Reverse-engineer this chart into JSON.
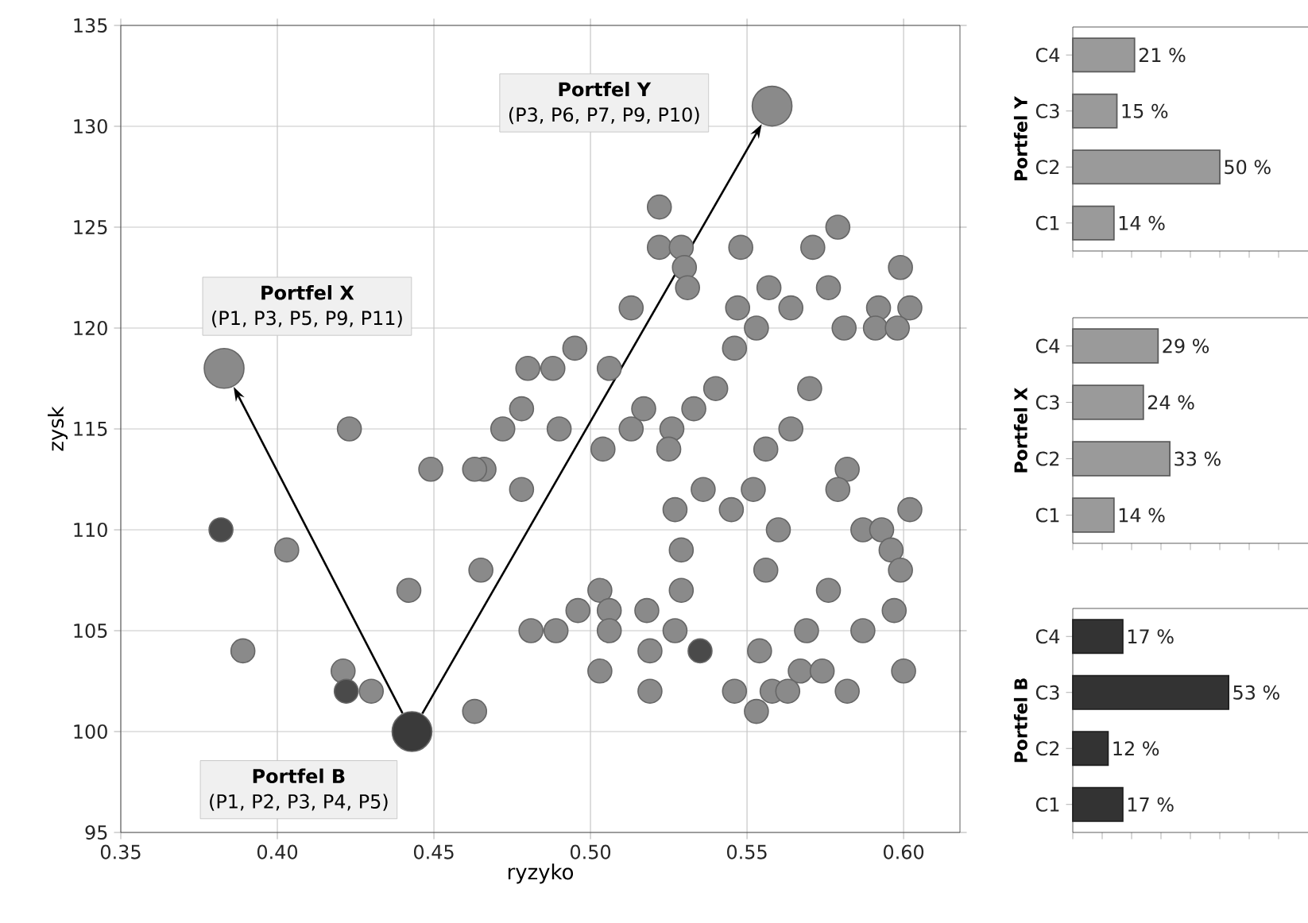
{
  "chart_data": [
    {
      "type": "scatter",
      "xlabel": "ryzyko",
      "ylabel": "zysk",
      "xlim": [
        0.35,
        0.618
      ],
      "ylim": [
        95,
        135
      ],
      "xticks": [
        {
          "value": 0.35,
          "label": "0.35"
        },
        {
          "value": 0.4,
          "label": "0.40"
        },
        {
          "value": 0.45,
          "label": "0.45"
        },
        {
          "value": 0.5,
          "label": "0.50"
        },
        {
          "value": 0.55,
          "label": "0.55"
        },
        {
          "value": 0.6,
          "label": "0.60"
        }
      ],
      "yticks": [
        95,
        100,
        105,
        110,
        115,
        120,
        125,
        130,
        135
      ],
      "grid": true,
      "marker": "circle",
      "series": [
        {
          "color": "#8a8a8a",
          "x": [
            0.522,
            0.522,
            0.529,
            0.53,
            0.531,
            0.513,
            0.548,
            0.557,
            0.564,
            0.547,
            0.553,
            0.546,
            0.571,
            0.579,
            0.576,
            0.581,
            0.592,
            0.602,
            0.599,
            0.591,
            0.598,
            0.495,
            0.488,
            0.48,
            0.506,
            0.478,
            0.472,
            0.466,
            0.423,
            0.49,
            0.504,
            0.513,
            0.517,
            0.526,
            0.525,
            0.533,
            0.54,
            0.57,
            0.564,
            0.556,
            0.582,
            0.579,
            0.536,
            0.552,
            0.527,
            0.545,
            0.56,
            0.602,
            0.587,
            0.593,
            0.596,
            0.599,
            0.529,
            0.556,
            0.529,
            0.576,
            0.597,
            0.503,
            0.496,
            0.506,
            0.518,
            0.481,
            0.489,
            0.506,
            0.527,
            0.569,
            0.587,
            0.519,
            0.554,
            0.503,
            0.567,
            0.574,
            0.6,
            0.519,
            0.546,
            0.558,
            0.563,
            0.582,
            0.553,
            0.403,
            0.442,
            0.465,
            0.389,
            0.421,
            0.43,
            0.463,
            0.449,
            0.463,
            0.478
          ],
          "values": [
            126,
            124,
            124,
            123,
            122,
            121,
            124,
            122,
            121,
            121,
            120,
            119,
            124,
            125,
            122,
            120,
            121,
            121,
            123,
            120,
            120,
            119,
            118,
            118,
            118,
            116,
            115,
            113,
            115,
            115,
            114,
            115,
            116,
            115,
            114,
            116,
            117,
            117,
            115,
            114,
            113,
            112,
            112,
            112,
            111,
            111,
            110,
            111,
            110,
            110,
            109,
            108,
            109,
            108,
            107,
            107,
            106,
            107,
            106,
            106,
            106,
            105,
            105,
            105,
            105,
            105,
            105,
            104,
            104,
            103,
            103,
            103,
            103,
            102,
            102,
            102,
            102,
            102,
            101,
            109,
            107,
            108,
            104,
            103,
            102,
            101,
            113,
            113,
            112
          ]
        },
        {
          "color": "#4a4a4a",
          "x": [
            0.382,
            0.422,
            0.535
          ],
          "values": [
            110,
            102,
            104
          ]
        },
        {
          "colors": [
            "#8a8a8a",
            "#8a8a8a",
            "#3a3a3a"
          ],
          "x": [
            0.383,
            0.558,
            0.443
          ],
          "values": [
            118,
            131,
            100
          ]
        }
      ],
      "annotations": [
        "Portfel X",
        "(P1, P3, P5, P9, P11)",
        "Portfel Y",
        "(P3, P6, P7, P9, P10)",
        "Portfel B",
        "(P1, P2, P3, P4, P5)"
      ]
    },
    {
      "type": "bar",
      "orientation": "horizontal",
      "ylabel": "Portfel Y",
      "categories": [
        "C4",
        "C3",
        "C2",
        "C1"
      ],
      "values": [
        21,
        15,
        50,
        14
      ],
      "value_labels": [
        "21 %",
        "15 %",
        "50 %",
        "14 %"
      ],
      "color": "#9a9a9a",
      "xlim": [
        0,
        80
      ],
      "xticks": [
        {
          "value": 0,
          "label": null
        },
        {
          "value": 10,
          "label": null
        },
        {
          "value": 20,
          "label": null
        },
        {
          "value": 30,
          "label": null
        },
        {
          "value": 40,
          "label": null
        },
        {
          "value": 50,
          "label": null
        },
        {
          "value": 60,
          "label": null
        },
        {
          "value": 70,
          "label": null
        }
      ],
      "tick_labels": "y"
    },
    {
      "type": "bar",
      "orientation": "horizontal",
      "ylabel": "Portfel X",
      "categories": [
        "C4",
        "C3",
        "C2",
        "C1"
      ],
      "values": [
        29,
        24,
        33,
        14
      ],
      "value_labels": [
        "29 %",
        "24 %",
        "33 %",
        "14 %"
      ],
      "color": "#9a9a9a",
      "xlim": [
        0,
        80
      ],
      "xticks": [
        {
          "value": 0,
          "label": null
        },
        {
          "value": 10,
          "label": null
        },
        {
          "value": 20,
          "label": null
        },
        {
          "value": 30,
          "label": null
        },
        {
          "value": 40,
          "label": null
        },
        {
          "value": 50,
          "label": null
        },
        {
          "value": 60,
          "label": null
        },
        {
          "value": 70,
          "label": null
        }
      ],
      "tick_labels": "y"
    },
    {
      "type": "bar",
      "orientation": "horizontal",
      "ylabel": "Portfel B",
      "categories": [
        "C4",
        "C3",
        "C2",
        "C1"
      ],
      "values": [
        17,
        53,
        12,
        17
      ],
      "value_labels": [
        "17 %",
        "53 %",
        "12 %",
        "17 %"
      ],
      "color": "#333333",
      "xlim": [
        0,
        80
      ],
      "xticks": [
        {
          "value": 0,
          "label": null
        },
        {
          "value": 10,
          "label": null
        },
        {
          "value": 20,
          "label": null
        },
        {
          "value": 30,
          "label": null
        },
        {
          "value": 40,
          "label": null
        },
        {
          "value": 50,
          "label": null
        },
        {
          "value": 60,
          "label": null
        },
        {
          "value": 70,
          "label": null
        }
      ],
      "tick_labels": "y"
    }
  ]
}
